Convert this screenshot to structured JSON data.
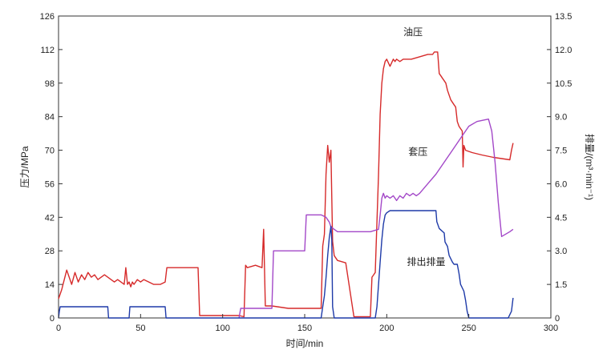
{
  "chart_data": {
    "type": "line",
    "title": "",
    "xlabel": "时间/min",
    "ylabel_left": "压力/MPa",
    "ylabel_right": "排量/(m³·min⁻¹)",
    "xlim": [
      0,
      300
    ],
    "ylim_left": [
      0,
      126
    ],
    "ylim_right": [
      0,
      13.5
    ],
    "x_ticks": [
      "0",
      "50",
      "100",
      "150",
      "200",
      "250",
      "300"
    ],
    "y_left_ticks": [
      "0",
      "14",
      "28",
      "42",
      "56",
      "70",
      "84",
      "98",
      "112",
      "126"
    ],
    "y_right_ticks": [
      "0",
      "1.5",
      "3.0",
      "4.5",
      "6.0",
      "7.5",
      "9.0",
      "10.5",
      "12.0",
      "13.5"
    ],
    "series": [
      {
        "name": "油压",
        "axis": "left",
        "color": "#d62a2a",
        "x": [
          0,
          2,
          5,
          8,
          10,
          12,
          14,
          16,
          18,
          20,
          22,
          24,
          26,
          28,
          30,
          32,
          34,
          36,
          38,
          40,
          41,
          42,
          43,
          44,
          45,
          46,
          48,
          50,
          52,
          55,
          58,
          62,
          65,
          66,
          70,
          80,
          85,
          86,
          110,
          113,
          114,
          115,
          120,
          124,
          125,
          126,
          130,
          140,
          150,
          158,
          160,
          161,
          162,
          163,
          164,
          165,
          166,
          167,
          168,
          170,
          175,
          180,
          185,
          190,
          191,
          192,
          193,
          194,
          195,
          196,
          197,
          198,
          199,
          200,
          202,
          204,
          205,
          206,
          208,
          210,
          215,
          220,
          225,
          228,
          229,
          230,
          231,
          232,
          233,
          234,
          235,
          236,
          237,
          238,
          239,
          240,
          241,
          242,
          243,
          244,
          245,
          246,
          246.5,
          247,
          248,
          252,
          258,
          265,
          270,
          275,
          276,
          277
        ],
        "values": [
          8,
          12,
          20,
          14,
          19,
          15,
          18,
          16,
          19,
          17,
          18,
          16,
          17,
          18,
          17,
          16,
          15,
          16,
          15,
          14,
          21,
          14,
          15,
          13,
          15,
          14,
          16,
          15,
          16,
          15,
          14,
          14,
          15,
          21,
          21,
          21,
          21,
          1,
          1,
          0.5,
          22,
          21,
          22,
          21,
          37,
          5,
          5,
          4,
          4,
          4,
          4,
          30,
          35,
          60,
          72,
          65,
          70,
          32,
          26,
          24,
          23,
          0.5,
          0.5,
          0.5,
          17,
          18,
          19,
          40,
          60,
          85,
          98,
          104,
          107,
          108,
          105,
          108,
          107,
          108,
          107,
          108,
          108,
          109,
          110,
          110,
          111,
          111,
          111,
          102,
          101,
          100,
          99,
          98,
          95,
          93,
          91,
          90,
          89,
          88,
          82,
          80,
          79,
          78,
          63,
          72,
          70,
          69,
          68,
          67,
          66.5,
          66,
          70,
          73
        ]
      },
      {
        "name": "套压",
        "axis": "left",
        "color": "#a348c8",
        "x": [
          110,
          111,
          130,
          131,
          150,
          151,
          160,
          163,
          165,
          166,
          168,
          170,
          175,
          180,
          190,
          195,
          196,
          197,
          198,
          199,
          200,
          202,
          204,
          206,
          208,
          210,
          212,
          214,
          216,
          218,
          220,
          225,
          230,
          235,
          240,
          245,
          250,
          255,
          262,
          264,
          266,
          268,
          270,
          275,
          277
        ],
        "values": [
          0,
          4,
          4,
          28,
          28,
          43,
          43,
          42,
          40,
          38,
          37,
          36,
          36,
          36,
          36,
          37,
          43,
          50,
          52,
          50,
          51,
          50,
          51,
          49,
          51,
          50,
          52,
          51,
          52,
          51,
          52,
          56,
          60,
          65,
          70,
          75,
          80,
          82,
          83,
          78,
          65,
          48,
          34,
          36,
          37
        ]
      },
      {
        "name": "排出排量",
        "axis": "right",
        "color": "#1e3aa8",
        "x": [
          0,
          0.5,
          1,
          30,
          30.5,
          43,
          43.5,
          65,
          65.5,
          160,
          161,
          162,
          163,
          164,
          165,
          166,
          166.5,
          167,
          168,
          169,
          193,
          194,
          195,
          196,
          197,
          198,
          199,
          200,
          202,
          204,
          215,
          230,
          230.5,
          232,
          235,
          235.5,
          237,
          238,
          240,
          241,
          243,
          244,
          245,
          247,
          248,
          249,
          250,
          251,
          274,
          276,
          276.5,
          277
        ],
        "values": [
          0,
          0.3,
          0.5,
          0.5,
          0,
          0,
          0.5,
          0.5,
          0,
          0,
          0.5,
          1.0,
          1.8,
          2.8,
          3.6,
          4.1,
          3.5,
          0.5,
          0,
          0,
          0,
          0.5,
          1.5,
          2.5,
          3.5,
          4.2,
          4.6,
          4.7,
          4.8,
          4.8,
          4.8,
          4.8,
          4.3,
          4.0,
          3.8,
          3.4,
          3.2,
          2.8,
          2.5,
          2.4,
          2.4,
          2.0,
          1.5,
          1.2,
          0.8,
          0.3,
          0,
          0,
          0,
          0.3,
          0.6,
          0.9
        ]
      }
    ],
    "annotations": [
      {
        "text": "油压",
        "x": 216,
        "y_left": 118
      },
      {
        "text": "套压",
        "x": 219,
        "y_left": 68
      },
      {
        "text": "排出排量",
        "x": 224,
        "y_left": 22
      }
    ]
  }
}
